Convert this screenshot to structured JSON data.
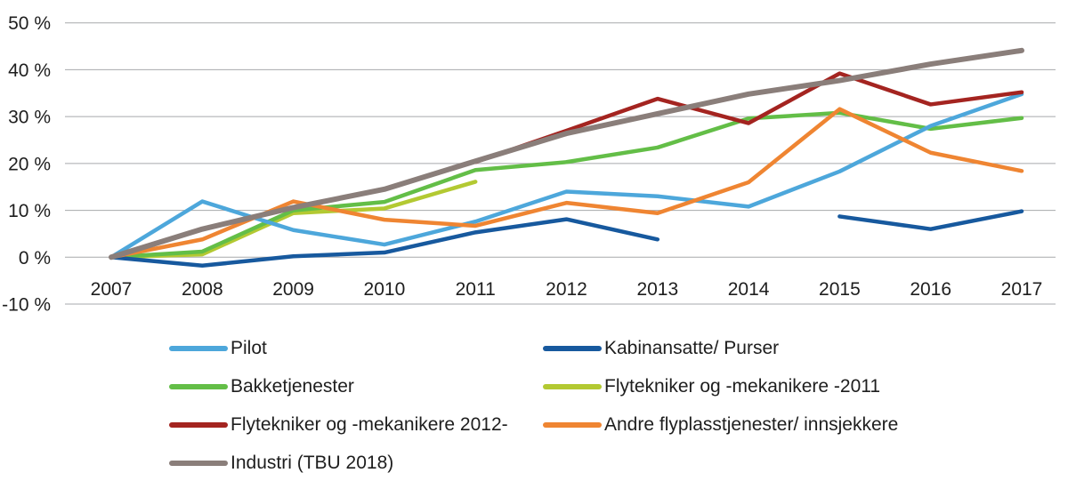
{
  "chart_data": {
    "type": "line",
    "title": "",
    "xlabel": "",
    "ylabel": "",
    "x": [
      2007,
      2008,
      2009,
      2010,
      2011,
      2012,
      2013,
      2014,
      2015,
      2016,
      2017
    ],
    "y_axis": {
      "min": -10,
      "max": 50,
      "tick_values": [
        50,
        40,
        30,
        20,
        10,
        0,
        -10
      ],
      "tick_labels": [
        "50 %",
        "40 %",
        "30 %",
        "20 %",
        "10 %",
        "0 %",
        "-10 %"
      ],
      "grid": true
    },
    "series": [
      {
        "name": "Pilot",
        "color": "#4da7db",
        "values": [
          0,
          11.9,
          5.8,
          2.7,
          7.6,
          14.0,
          13.0,
          10.8,
          18.3,
          28.0,
          34.8
        ]
      },
      {
        "name": "Kabinansatte/ Purser",
        "color": "#17599e",
        "values": [
          0,
          -1.8,
          0.2,
          1.0,
          5.3,
          8.1,
          3.8,
          null,
          8.7,
          6.0,
          9.8
        ]
      },
      {
        "name": "Bakketjenester",
        "color": "#63be47",
        "values": [
          0,
          1.2,
          10.0,
          11.8,
          18.6,
          20.3,
          23.4,
          29.6,
          30.8,
          27.4,
          29.7
        ]
      },
      {
        "name": "Flytekniker og -mekanikere -2011",
        "color": "#b3c932",
        "values": [
          0,
          0.6,
          9.4,
          10.4,
          16.1,
          null,
          null,
          null,
          null,
          null,
          null
        ]
      },
      {
        "name": "Flytekniker og -mekanikere 2012-",
        "color": "#a42420",
        "values": [
          null,
          null,
          null,
          null,
          20.3,
          27.0,
          33.8,
          28.6,
          39.2,
          32.6,
          35.2
        ]
      },
      {
        "name": "Andre flyplasstjenester/ innsjekkere",
        "color": "#ef8532",
        "values": [
          0,
          3.8,
          11.9,
          8.0,
          6.7,
          11.6,
          9.4,
          16.0,
          31.6,
          22.3,
          18.4
        ]
      },
      {
        "name": "Industri (TBU 2018)",
        "color": "#8a7e7a",
        "values": [
          0,
          6.0,
          10.6,
          14.5,
          20.5,
          26.4,
          30.6,
          34.8,
          37.7,
          41.2,
          44.1
        ]
      }
    ],
    "legend": {
      "position": "bottom",
      "columns": [
        [
          0,
          2,
          4,
          6
        ],
        [
          1,
          3,
          5
        ]
      ]
    },
    "draw_order": [
      3,
      2,
      0,
      1,
      5,
      4,
      6
    ],
    "line_width": 4.5,
    "industri_line_width": 6,
    "grid_color": "#a7a9ac"
  }
}
